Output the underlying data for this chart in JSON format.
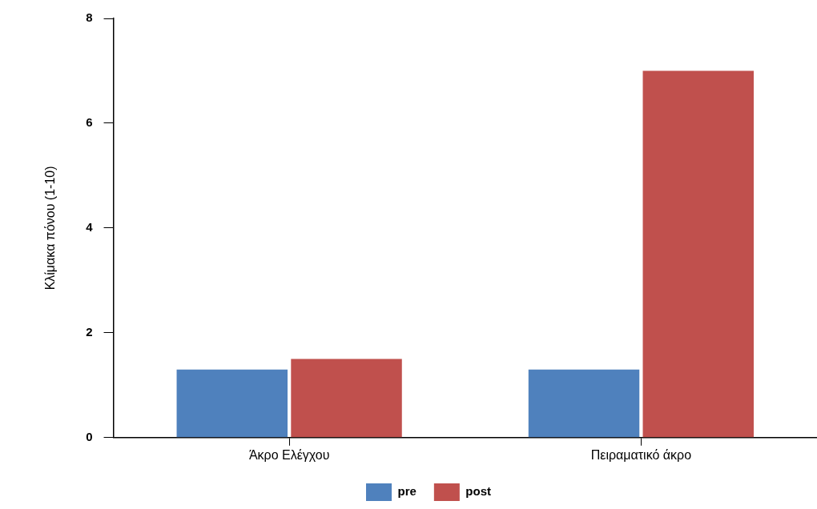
{
  "chart_data": {
    "type": "bar",
    "ylabel": "Κλίμακα πόνου (1-10)",
    "categories": [
      "Άκρο Ελέγχου",
      "Πειραματικό άκρο"
    ],
    "series": [
      {
        "name": "pre",
        "color": "#4f81bd",
        "values": [
          1.3,
          1.3
        ]
      },
      {
        "name": "post",
        "color": "#c0504d",
        "values": [
          1.5,
          7
        ]
      }
    ],
    "ylim": [
      0,
      8
    ],
    "yticks": [
      0,
      2,
      4,
      6,
      8
    ],
    "grid": false,
    "legend": "bottom"
  }
}
